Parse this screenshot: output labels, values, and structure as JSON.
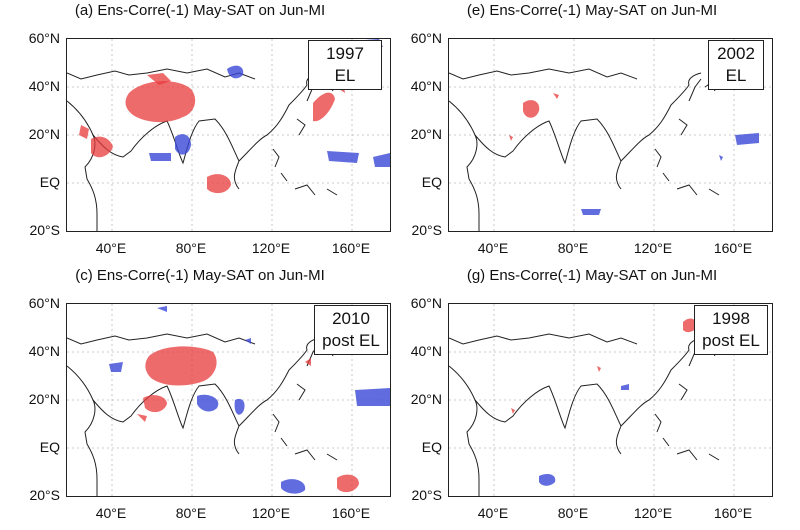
{
  "panels": [
    {
      "id": "a",
      "title": "(a) Ens-Corre(-1) May-SAT on Jun-MI",
      "year": "1997",
      "phase": "EL",
      "lat_labels": [
        "60°N",
        "40°N",
        "20°N",
        "EQ",
        "20°S"
      ],
      "lon_labels": [
        "40°E",
        "80°E",
        "120°E",
        "160°E"
      ]
    },
    {
      "id": "e",
      "title": "(e) Ens-Corre(-1) May-SAT on Jun-MI",
      "year": "2002",
      "phase": "EL",
      "lat_labels": [
        "60°N",
        "40°N",
        "20°N",
        "EQ",
        "20°S"
      ],
      "lon_labels": [
        "40°E",
        "80°E",
        "120°E",
        "160°E"
      ]
    },
    {
      "id": "c",
      "title": "(c) Ens-Corre(-1) May-SAT on Jun-MI",
      "year": "2010",
      "phase": "post EL",
      "lat_labels": [
        "60°N",
        "40°N",
        "20°N",
        "EQ",
        "20°S"
      ],
      "lon_labels": [
        "40°E",
        "80°E",
        "120°E",
        "160°E"
      ]
    },
    {
      "id": "g",
      "title": "(g) Ens-Corre(-1) May-SAT on Jun-MI",
      "year": "1998",
      "phase": "post EL",
      "lat_labels": [
        "60°N",
        "40°N",
        "20°N",
        "EQ",
        "20°S"
      ],
      "lon_labels": [
        "40°E",
        "80°E",
        "120°E",
        "160°E"
      ]
    }
  ],
  "colors": {
    "positive": "#e8393b",
    "negative": "#3a48d6",
    "coast": "#222222",
    "grid": "#bbbbbb"
  }
}
